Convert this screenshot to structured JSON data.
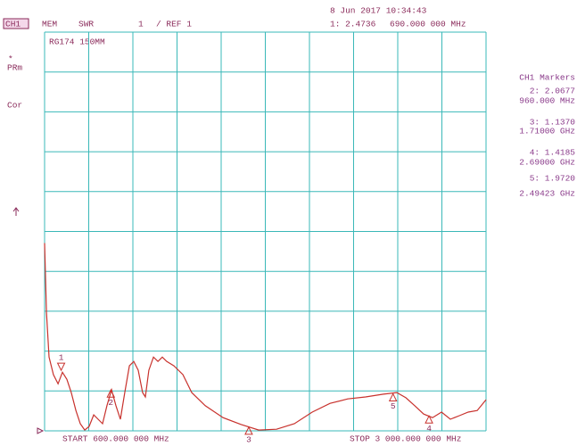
{
  "chart_data": {
    "type": "line",
    "timestamp": "8 Jun 2017  10:34:43",
    "channel": "CH1",
    "mode": "MEM",
    "format": "SWR",
    "scale": "1",
    "reference": "/ REF 1",
    "active_marker_value": "1: 2.4736",
    "active_marker_freq": "690.000 000 MHz",
    "title": "RG174 150MM",
    "left_status": [
      "*",
      "PRm",
      "Cor"
    ],
    "start_label": "START 600.000 000 MHz",
    "stop_label": "STOP 3 000.000 000 MHz",
    "marker_panel_title": "CH1 Markers",
    "marker_readouts": [
      {
        "value": "2: 2.0677",
        "freq": "960.000 MHz"
      },
      {
        "value": "3: 1.1370",
        "freq": "1.71000 GHz"
      },
      {
        "value": "4: 1.4185",
        "freq": "2.69000 GHz"
      },
      {
        "value": "5: 1.9720",
        "freq": "2.49423 GHz"
      }
    ],
    "xlim": [
      600,
      3000
    ],
    "ylim": [
      1,
      11
    ],
    "grid": true,
    "color": "#c8322d",
    "x": [
      600,
      610,
      624,
      648,
      673,
      697,
      721,
      745,
      770,
      794,
      818,
      842,
      867,
      891,
      915,
      939,
      964,
      988,
      1012,
      1036,
      1061,
      1085,
      1109,
      1133,
      1148,
      1167,
      1192,
      1216,
      1240,
      1264,
      1303,
      1352,
      1400,
      1473,
      1570,
      1667,
      1764,
      1861,
      1958,
      2055,
      2152,
      2248,
      2345,
      2442,
      2515,
      2564,
      2612,
      2661,
      2709,
      2758,
      2806,
      2855,
      2903,
      2952,
      3000
    ],
    "values": [
      5.71,
      3.97,
      2.85,
      2.41,
      2.18,
      2.47,
      2.29,
      1.96,
      1.51,
      1.18,
      1.02,
      1.11,
      1.4,
      1.29,
      1.18,
      1.63,
      2.03,
      1.63,
      1.29,
      1.96,
      2.63,
      2.74,
      2.52,
      1.96,
      1.85,
      2.52,
      2.85,
      2.74,
      2.85,
      2.74,
      2.63,
      2.41,
      1.96,
      1.63,
      1.33,
      1.16,
      1.02,
      1.04,
      1.18,
      1.47,
      1.69,
      1.8,
      1.85,
      1.92,
      1.96,
      1.83,
      1.63,
      1.42,
      1.33,
      1.47,
      1.29,
      1.38,
      1.47,
      1.51,
      1.78
    ],
    "markers": [
      {
        "label": "1",
        "x": 690,
        "value": 2.4736
      },
      {
        "label": "2",
        "x": 960,
        "value": 2.0677
      },
      {
        "label": "3",
        "x": 1710,
        "value": 1.137
      },
      {
        "label": "4",
        "x": 2690,
        "value": 1.4185
      },
      {
        "label": "5",
        "x": 2494.23,
        "value": 1.972
      }
    ]
  }
}
